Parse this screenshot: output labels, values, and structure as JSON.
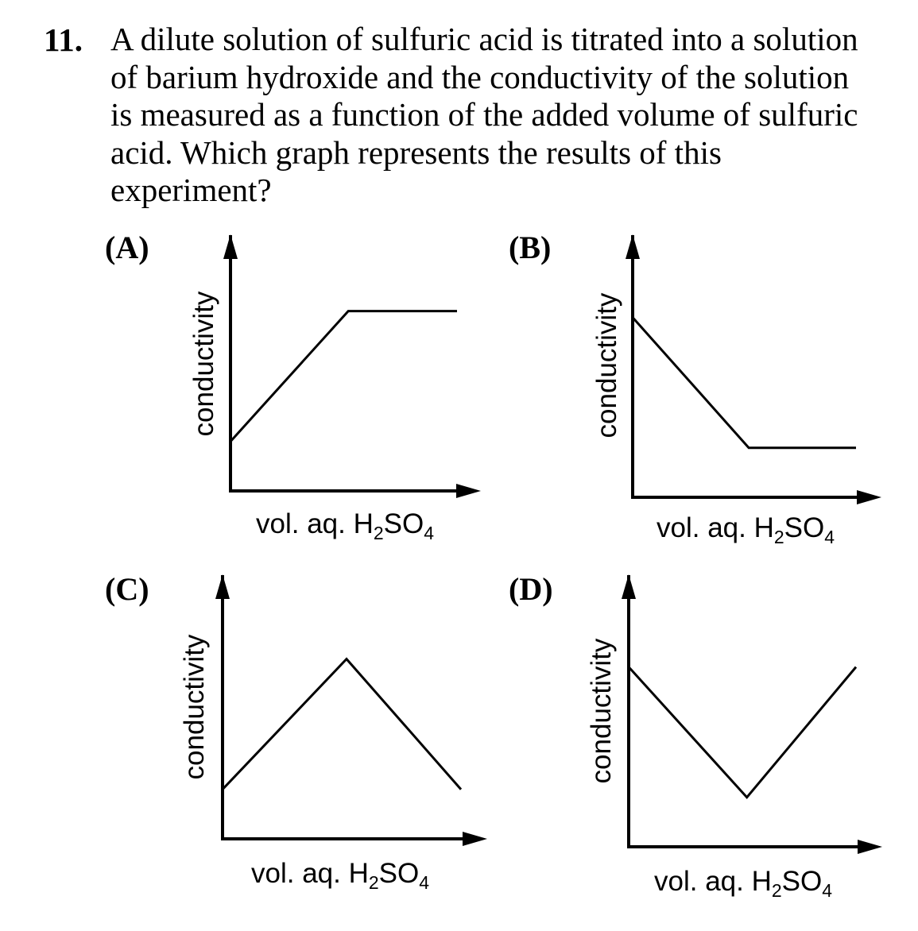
{
  "question": {
    "number": "11.",
    "lines": [
      "A dilute solution of sulfuric acid is titrated into a solution",
      "of barium hydroxide and the conductivity of the solution",
      "is measured as a function of the added volume of sulfuric",
      "acid.  Which graph represents the results of this",
      "experiment?"
    ]
  },
  "choices": [
    {
      "label": "(A)"
    },
    {
      "label": "(B)"
    },
    {
      "label": "(C)"
    },
    {
      "label": "(D)"
    }
  ],
  "axis_labels": {
    "y": "conductivity",
    "x_main": "vol. aq. H",
    "x_sub1": "2",
    "x_mid": "SO",
    "x_sub2": "4"
  },
  "chart_data": [
    {
      "type": "line",
      "label": "(A)",
      "xlabel": "vol. aq. H2SO4",
      "ylabel": "conductivity",
      "x": [
        0,
        0.52,
        1.0
      ],
      "y": [
        0.22,
        0.8,
        0.8
      ]
    },
    {
      "type": "line",
      "label": "(B)",
      "xlabel": "vol. aq. H2SO4",
      "ylabel": "conductivity",
      "x": [
        0,
        0.52,
        1.0
      ],
      "y": [
        0.8,
        0.22,
        0.22
      ]
    },
    {
      "type": "line",
      "label": "(C)",
      "xlabel": "vol. aq. H2SO4",
      "ylabel": "conductivity",
      "x": [
        0,
        0.52,
        1.0
      ],
      "y": [
        0.22,
        0.8,
        0.22
      ]
    },
    {
      "type": "line",
      "label": "(D)",
      "xlabel": "vol. aq. H2SO4",
      "ylabel": "conductivity",
      "x": [
        0,
        0.52,
        1.0
      ],
      "y": [
        0.8,
        0.22,
        0.8
      ]
    }
  ]
}
